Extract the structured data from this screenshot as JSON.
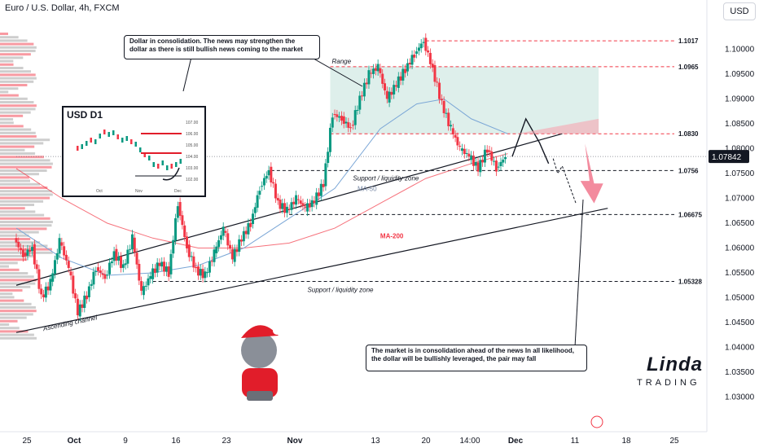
{
  "header": {
    "title": "Euro / U.S. Dollar, 4h, FXCM",
    "currency_button": "USD"
  },
  "chart_data": {
    "type": "candlestick",
    "symbol": "EUR/USD",
    "timeframe": "4h",
    "ylim": [
      1.025,
      1.105
    ],
    "y_ticks": [
      "1.10000",
      "1.09500",
      "1.09000",
      "1.08500",
      "1.08000",
      "1.07500",
      "1.07000",
      "1.06500",
      "1.06000",
      "1.05500",
      "1.05000",
      "1.04500",
      "1.04000",
      "1.03500",
      "1.03000"
    ],
    "x_ticks": [
      "25",
      "Oct",
      "9",
      "16",
      "23",
      "Nov",
      "13",
      "20",
      "14:00",
      "Dec",
      "11",
      "18",
      "25"
    ],
    "current_price": "1.07842",
    "price_series": [
      {
        "t": 0,
        "p": 1.062
      },
      {
        "t": 2,
        "p": 1.0585
      },
      {
        "t": 4,
        "p": 1.06
      },
      {
        "t": 6,
        "p": 1.05
      },
      {
        "t": 8,
        "p": 1.053
      },
      {
        "t": 10,
        "p": 1.0615
      },
      {
        "t": 12,
        "p": 1.056
      },
      {
        "t": 14,
        "p": 1.047
      },
      {
        "t": 16,
        "p": 1.0505
      },
      {
        "t": 18,
        "p": 1.056
      },
      {
        "t": 20,
        "p": 1.054
      },
      {
        "t": 22,
        "p": 1.059
      },
      {
        "t": 24,
        "p": 1.056
      },
      {
        "t": 26,
        "p": 1.062
      },
      {
        "t": 28,
        "p": 1.051
      },
      {
        "t": 30,
        "p": 1.0545
      },
      {
        "t": 32,
        "p": 1.057
      },
      {
        "t": 34,
        "p": 1.055
      },
      {
        "t": 36,
        "p": 1.069
      },
      {
        "t": 38,
        "p": 1.06
      },
      {
        "t": 40,
        "p": 1.0555
      },
      {
        "t": 42,
        "p": 1.0545
      },
      {
        "t": 44,
        "p": 1.059
      },
      {
        "t": 46,
        "p": 1.064
      },
      {
        "t": 48,
        "p": 1.058
      },
      {
        "t": 50,
        "p": 1.062
      },
      {
        "t": 52,
        "p": 1.065
      },
      {
        "t": 54,
        "p": 1.072
      },
      {
        "t": 56,
        "p": 1.0756
      },
      {
        "t": 58,
        "p": 1.069
      },
      {
        "t": 60,
        "p": 1.0675
      },
      {
        "t": 62,
        "p": 1.07
      },
      {
        "t": 64,
        "p": 1.068
      },
      {
        "t": 66,
        "p": 1.0695
      },
      {
        "t": 68,
        "p": 1.073
      },
      {
        "t": 70,
        "p": 1.087
      },
      {
        "t": 72,
        "p": 1.086
      },
      {
        "t": 74,
        "p": 1.084
      },
      {
        "t": 76,
        "p": 1.09
      },
      {
        "t": 78,
        "p": 1.095
      },
      {
        "t": 80,
        "p": 1.0965
      },
      {
        "t": 82,
        "p": 1.09
      },
      {
        "t": 84,
        "p": 1.093
      },
      {
        "t": 86,
        "p": 1.096
      },
      {
        "t": 88,
        "p": 1.099
      },
      {
        "t": 90,
        "p": 1.1017
      },
      {
        "t": 92,
        "p": 1.096
      },
      {
        "t": 94,
        "p": 1.089
      },
      {
        "t": 96,
        "p": 1.084
      },
      {
        "t": 98,
        "p": 1.08
      },
      {
        "t": 100,
        "p": 1.0785
      },
      {
        "t": 102,
        "p": 1.076
      },
      {
        "t": 104,
        "p": 1.08
      },
      {
        "t": 106,
        "p": 1.076
      },
      {
        "t": 108,
        "p": 1.0784
      }
    ],
    "ma50": [
      {
        "t": 0,
        "p": 1.064
      },
      {
        "t": 10,
        "p": 1.058
      },
      {
        "t": 20,
        "p": 1.0545
      },
      {
        "t": 30,
        "p": 1.055
      },
      {
        "t": 40,
        "p": 1.0565
      },
      {
        "t": 50,
        "p": 1.06
      },
      {
        "t": 60,
        "p": 1.066
      },
      {
        "t": 70,
        "p": 1.072
      },
      {
        "t": 80,
        "p": 1.084
      },
      {
        "t": 88,
        "p": 1.089
      },
      {
        "t": 94,
        "p": 1.09
      },
      {
        "t": 100,
        "p": 1.086
      },
      {
        "t": 108,
        "p": 1.083
      }
    ],
    "ma200": [
      {
        "t": 0,
        "p": 1.076
      },
      {
        "t": 10,
        "p": 1.07
      },
      {
        "t": 20,
        "p": 1.065
      },
      {
        "t": 30,
        "p": 1.062
      },
      {
        "t": 40,
        "p": 1.06
      },
      {
        "t": 50,
        "p": 1.06
      },
      {
        "t": 60,
        "p": 1.061
      },
      {
        "t": 70,
        "p": 1.064
      },
      {
        "t": 80,
        "p": 1.069
      },
      {
        "t": 90,
        "p": 1.074
      },
      {
        "t": 100,
        "p": 1.077
      },
      {
        "t": 108,
        "p": 1.079
      }
    ],
    "levels": [
      {
        "label": "1.1017",
        "price": 1.1017,
        "color": "#f23645"
      },
      {
        "label": "1.0965",
        "price": 1.0965,
        "color": "#f23645"
      },
      {
        "label": "1.0830",
        "price": 1.083,
        "color": "#f23645"
      },
      {
        "label": "1.0756",
        "price": 1.0756,
        "color": "#131722"
      },
      {
        "label": "1.06675",
        "price": 1.06675,
        "color": "#131722"
      },
      {
        "label": "1.05328",
        "price": 1.05328,
        "color": "#131722"
      }
    ],
    "annotations": {
      "range": "Range",
      "support_upper": "Support / liquidity zone",
      "support_lower": "Support / liquidity zone",
      "ma50_label": "MA-50",
      "ma200_label": "MA-200",
      "channel_label": "Ascending channel"
    }
  },
  "callouts": {
    "top": "Dollar in consolidation. The news may strengthen the dollar as there is still bullish news coming to the market",
    "bottom": "The market is in consolidation ahead of the news In all likelihood, the dollar will be bullishly leveraged, the pair may fall"
  },
  "inset": {
    "title": "USD D1",
    "y_ticks": [
      "107.00",
      "106.00",
      "105.00",
      "104.00",
      "103.00",
      "102.00"
    ],
    "x_ticks": [
      "Oct",
      "Nov",
      "Dec"
    ]
  },
  "logo": {
    "word": "Linda",
    "sub": "TRADING"
  },
  "colors": {
    "up": "#089981",
    "down": "#f23645",
    "ma50": "#7aa6d6",
    "ma200": "#f23645",
    "range_fill": "#d6ebe6"
  }
}
